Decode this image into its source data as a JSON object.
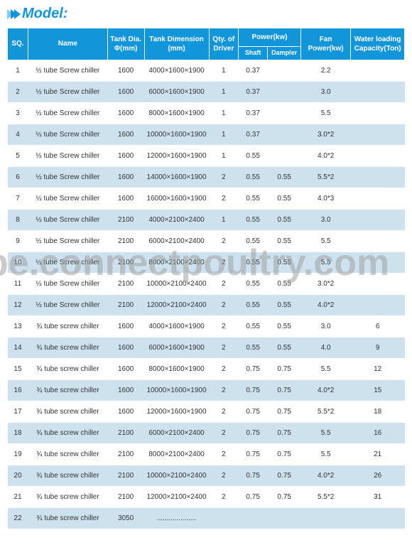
{
  "title": "Model:",
  "watermark": "be.connectpoultry.com",
  "headers": {
    "sq": "SQ.",
    "name": "Name",
    "dia": "Tank Dia. Φ(mm)",
    "dim": "Tank Dimension (mm)",
    "qty": "Qty. of Driver",
    "power": "Power(kw)",
    "shaft": "Shaft",
    "dampler": "Dampler",
    "fan": "Fan Power(kw)",
    "cap": "Water loading Capacity(Ton)"
  },
  "rows": [
    {
      "sq": "1",
      "name": "½ tube Screw chiller",
      "dia": "1600",
      "dim": "4000×1600×1900",
      "qty": "1",
      "shaft": "0.37",
      "damp": "",
      "fan": "2.2",
      "cap": ""
    },
    {
      "sq": "2",
      "name": "½ tube Screw chiller",
      "dia": "1600",
      "dim": "6000×1600×1900",
      "qty": "1",
      "shaft": "0.37",
      "damp": "",
      "fan": "3.0",
      "cap": ""
    },
    {
      "sq": "3",
      "name": "½ tube Screw chiller",
      "dia": "1600",
      "dim": "8000×1600×1900",
      "qty": "1",
      "shaft": "0.37",
      "damp": "",
      "fan": "5.5",
      "cap": ""
    },
    {
      "sq": "4",
      "name": "½ tube Screw chiller",
      "dia": "1600",
      "dim": "10000×1600×1900",
      "qty": "1",
      "shaft": "0.37",
      "damp": "",
      "fan": "3.0*2",
      "cap": ""
    },
    {
      "sq": "5",
      "name": "½ tube Screw chiller",
      "dia": "1600",
      "dim": "12000×1600×1900",
      "qty": "1",
      "shaft": "0.55",
      "damp": "",
      "fan": "4.0*2",
      "cap": ""
    },
    {
      "sq": "6",
      "name": "½ tube Screw chiller",
      "dia": "1600",
      "dim": "14000×1600×1900",
      "qty": "2",
      "shaft": "0.55",
      "damp": "0.55",
      "fan": "5.5*2",
      "cap": ""
    },
    {
      "sq": "7",
      "name": "½ tube Screw chiller",
      "dia": "1600",
      "dim": "16000×1600×1900",
      "qty": "2",
      "shaft": "0.55",
      "damp": "0.55",
      "fan": "4.0*3",
      "cap": ""
    },
    {
      "sq": "8",
      "name": "½ tube Screw chiller",
      "dia": "2100",
      "dim": "4000×2100×2400",
      "qty": "1",
      "shaft": "0.55",
      "damp": "0.55",
      "fan": "3.0",
      "cap": ""
    },
    {
      "sq": "9",
      "name": "½ tube Screw chiller",
      "dia": "2100",
      "dim": "6000×2100×2400",
      "qty": "2",
      "shaft": "0.55",
      "damp": "0.55",
      "fan": "5.5",
      "cap": ""
    },
    {
      "sq": "10",
      "name": "½ tube Screw chiller",
      "dia": "2100",
      "dim": "8000×2100×2400",
      "qty": "2",
      "shaft": "0.55",
      "damp": "0.55",
      "fan": "5.5",
      "cap": ""
    },
    {
      "sq": "11",
      "name": "½ tube Screw chiller",
      "dia": "2100",
      "dim": "10000×2100×2400",
      "qty": "2",
      "shaft": "0.55",
      "damp": "0.55",
      "fan": "3.0*2",
      "cap": ""
    },
    {
      "sq": "12",
      "name": "½ tube Screw chiller",
      "dia": "2100",
      "dim": "12000×2100×2400",
      "qty": "2",
      "shaft": "0.55",
      "damp": "0.55",
      "fan": "4.0*2",
      "cap": ""
    },
    {
      "sq": "13",
      "name": "¾ tube screw chiller",
      "dia": "1600",
      "dim": "4000×1600×1900",
      "qty": "2",
      "shaft": "0.55",
      "damp": "0.55",
      "fan": "3.0",
      "cap": "6"
    },
    {
      "sq": "14",
      "name": "¾ tube screw chiller",
      "dia": "1600",
      "dim": "6000×1600×1900",
      "qty": "2",
      "shaft": "0.55",
      "damp": "0.55",
      "fan": "4.0",
      "cap": "9"
    },
    {
      "sq": "15",
      "name": "¾ tube screw chiller",
      "dia": "1600",
      "dim": "8000×1600×1900",
      "qty": "2",
      "shaft": "0.75",
      "damp": "0.75",
      "fan": "5.5",
      "cap": "12"
    },
    {
      "sq": "16",
      "name": "¾ tube screw chiller",
      "dia": "1600",
      "dim": "10000×1600×1900",
      "qty": "2",
      "shaft": "0.75",
      "damp": "0.75",
      "fan": "4.0*2",
      "cap": "15"
    },
    {
      "sq": "17",
      "name": "¾ tube screw chiller",
      "dia": "1600",
      "dim": "12000×1600×1900",
      "qty": "2",
      "shaft": "0.75",
      "damp": "0.75",
      "fan": "5.5*2",
      "cap": "18"
    },
    {
      "sq": "18",
      "name": "¾ tube screw chiller",
      "dia": "2100",
      "dim": "6000×2100×2400",
      "qty": "2",
      "shaft": "0.75",
      "damp": "0.75",
      "fan": "5.5",
      "cap": "16"
    },
    {
      "sq": "19",
      "name": "¾ tube screw chiller",
      "dia": "2100",
      "dim": "8000×2100×2400",
      "qty": "2",
      "shaft": "0.75",
      "damp": "0.75",
      "fan": "5.5",
      "cap": "21"
    },
    {
      "sq": "20",
      "name": "¾ tube screw chiller",
      "dia": "2100",
      "dim": "10000×2100×2400",
      "qty": "2",
      "shaft": "0.75",
      "damp": "0.75",
      "fan": "4.0*2",
      "cap": "26"
    },
    {
      "sq": "21",
      "name": "¾ tube screw chiller",
      "dia": "2100",
      "dim": "12000×2100×2400",
      "qty": "2",
      "shaft": "0.75",
      "damp": "0.75",
      "fan": "5.5*2",
      "cap": "31"
    },
    {
      "sq": "22",
      "name": "¾ tube screw chiller",
      "dia": "3050",
      "dim": "....................",
      "qty": "",
      "shaft": "",
      "damp": "",
      "fan": "",
      "cap": ""
    }
  ]
}
